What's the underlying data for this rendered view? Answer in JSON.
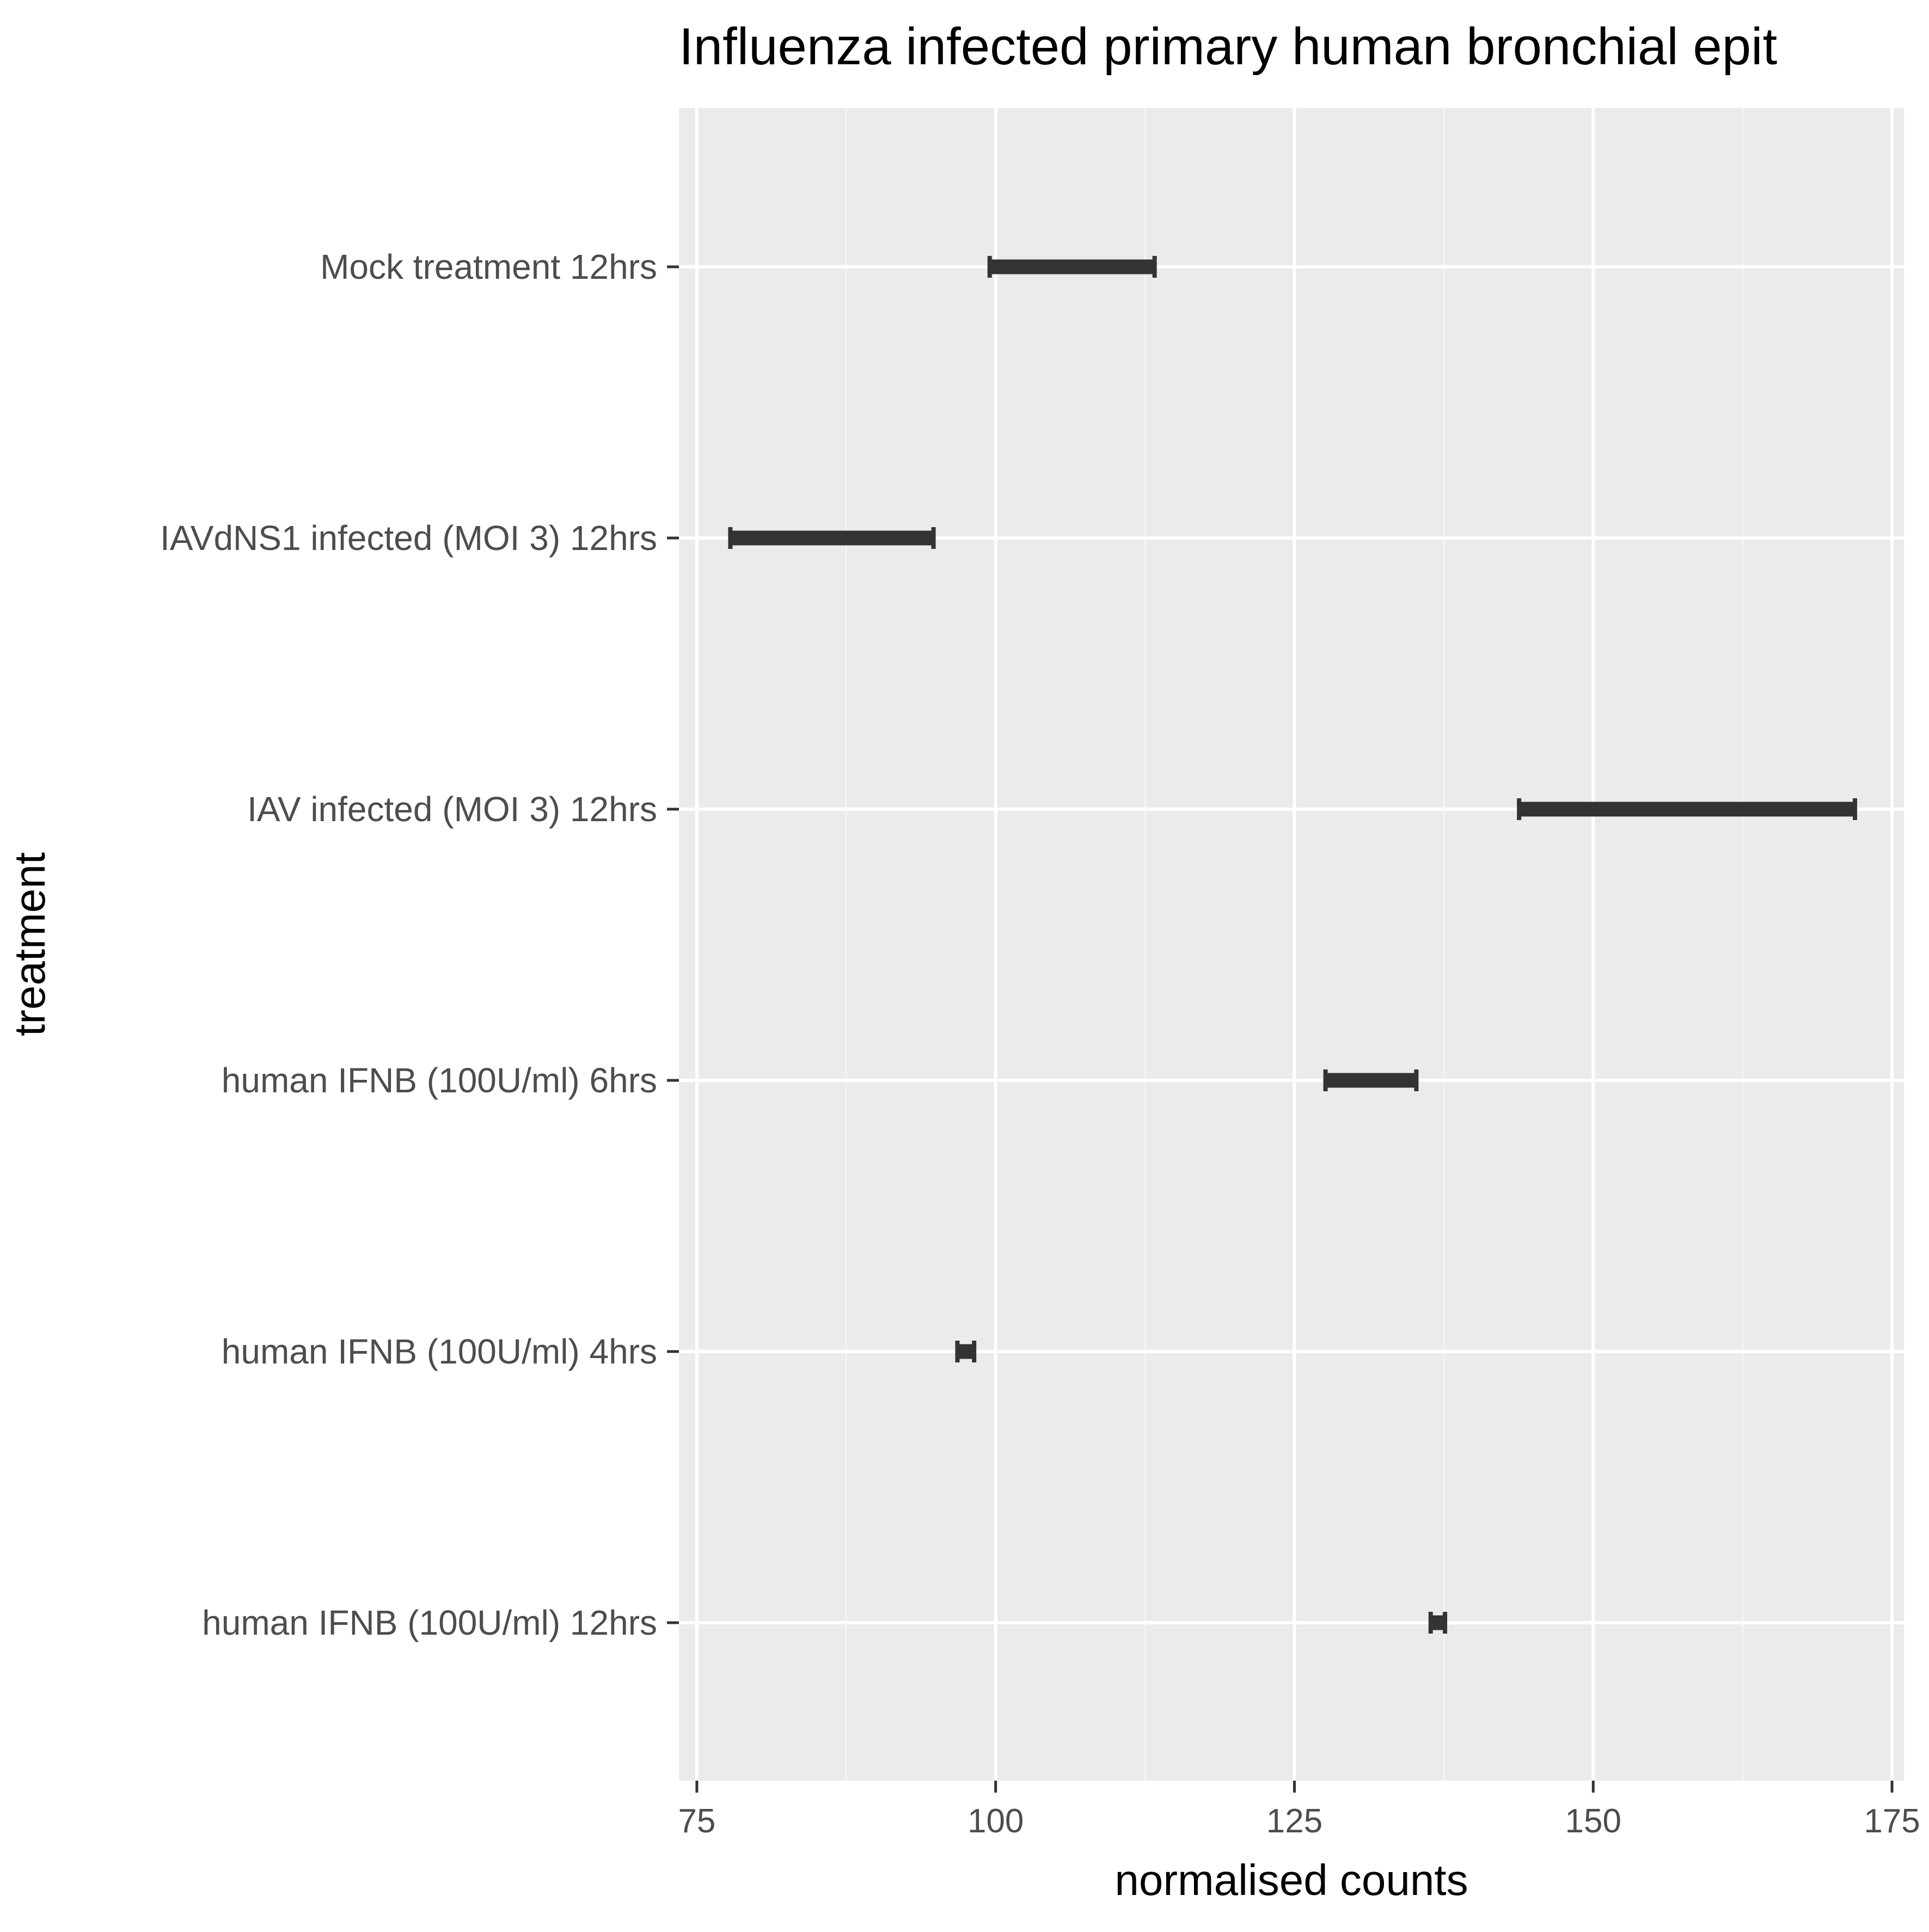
{
  "chart_data": {
    "type": "range_bar",
    "title": "Influenza infected primary human bronchial epit",
    "xlabel": "normalised counts",
    "ylabel": "treatment",
    "xlim": [
      73.5,
      176
    ],
    "x_ticks": [
      75,
      100,
      125,
      150,
      175
    ],
    "x_tick_labels": [
      "75",
      "100",
      "125",
      "150",
      "175"
    ],
    "categories": [
      "Mock treatment 12hrs",
      "IAVdNS1 infected (MOI 3) 12hrs",
      "IAV infected (MOI 3) 12hrs",
      "human IFNB  (100U/ml) 6hrs",
      "human IFNB  (100U/ml) 4hrs",
      "human IFNB  (100U/ml) 12hrs"
    ],
    "series": [
      {
        "ranges": [
          [
            99.5,
            113.3
          ],
          [
            77.8,
            94.8
          ],
          [
            143.8,
            171.9
          ],
          [
            127.6,
            135.2
          ],
          [
            96.8,
            98.2
          ],
          [
            136.4,
            137.6
          ]
        ]
      }
    ],
    "grid": true,
    "legend": "none",
    "colors": {
      "panel_background": "#EBEBEB",
      "grid_major": "#FFFFFF",
      "grid_minor": "#F4F4F4",
      "bar": "#333333",
      "tick_label": "#4D4D4D",
      "axis_title": "#000000"
    }
  }
}
